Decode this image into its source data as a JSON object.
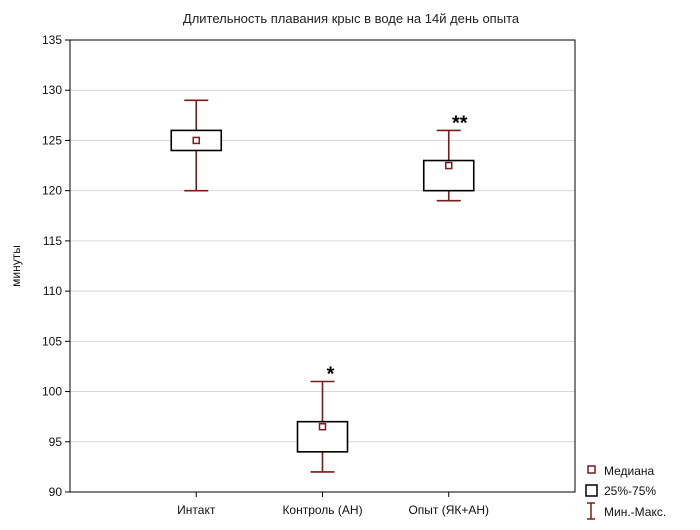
{
  "chart_data": {
    "type": "box",
    "title": "Длительность плавания крыс в воде на 14й день опыта",
    "xlabel": "",
    "ylabel": "минуты",
    "ylim": [
      90,
      135
    ],
    "yticks": [
      90,
      95,
      100,
      105,
      110,
      115,
      120,
      125,
      130,
      135
    ],
    "grid": true,
    "categories": [
      "Интакт",
      "Контроль (АН)",
      "Опыт (ЯК+АН)"
    ],
    "median": [
      125,
      96.5,
      122.5
    ],
    "q1": [
      124,
      94,
      120
    ],
    "q3": [
      126,
      97,
      123
    ],
    "min": [
      120,
      92,
      119
    ],
    "max": [
      129,
      101,
      126
    ],
    "annotations": [
      "",
      "*",
      "**"
    ],
    "legend": {
      "position": "bottom-right",
      "median": "Медиана",
      "box": "25%-75%",
      "whisker": "Мин.-Макс."
    },
    "colors": {
      "series": "#7a1a1a",
      "grid": "#d9d9d9",
      "frame": "#000000"
    }
  }
}
